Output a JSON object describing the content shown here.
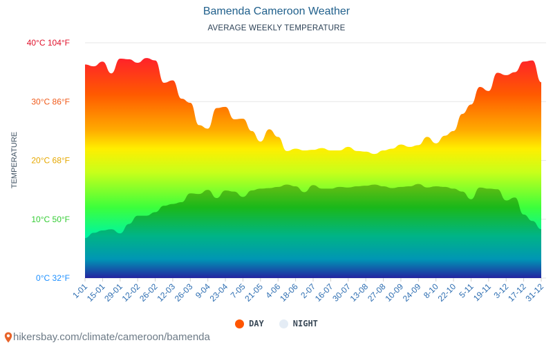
{
  "title": "Bamenda Cameroon Weather",
  "subtitle": "AVERAGE WEEKLY TEMPERATURE",
  "source": "hikersbay.com/climate/cameroon/bamenda",
  "legend": {
    "day_label": "DAY",
    "night_label": "NIGHT",
    "day_color": "#ff5500",
    "night_color": "#e4ecf5"
  },
  "chart_data": {
    "type": "area",
    "title": "Bamenda Cameroon Weather",
    "subtitle": "AVERAGE WEEKLY TEMPERATURE",
    "ylabel": "TEMPERATURE",
    "ylim": [
      0,
      40
    ],
    "y_ticks": [
      {
        "value": 0,
        "label": "0°C 32°F",
        "color": "#1e90ff"
      },
      {
        "value": 10,
        "label": "10°C 50°F",
        "color": "#33cc33"
      },
      {
        "value": 20,
        "label": "20°C 68°F",
        "color": "#e6a800"
      },
      {
        "value": 30,
        "label": "30°C 86°F",
        "color": "#f05a1a"
      },
      {
        "value": 40,
        "label": "40°C 104°F",
        "color": "#e0102a"
      }
    ],
    "x_tick_labels": [
      "1-01",
      "15-01",
      "29-01",
      "12-02",
      "26-02",
      "12-03",
      "26-03",
      "9-04",
      "23-04",
      "7-05",
      "21-05",
      "4-06",
      "18-06",
      "2-07",
      "16-07",
      "30-07",
      "13-08",
      "27-08",
      "10-09",
      "24-09",
      "8-10",
      "22-10",
      "5-11",
      "19-11",
      "3-12",
      "17-12",
      "31-12"
    ],
    "grid": "horizontal",
    "legend_position": "bottom-center",
    "series": [
      {
        "name": "DAY",
        "values": [
          36.3,
          36.0,
          36.8,
          34.8,
          37.3,
          37.2,
          36.6,
          37.4,
          37.0,
          33.2,
          33.6,
          30.5,
          29.8,
          26.0,
          25.4,
          28.9,
          29.1,
          27.0,
          27.1,
          25.0,
          23.2,
          25.3,
          24.0,
          21.6,
          22.0,
          21.7,
          21.8,
          22.1,
          21.7,
          21.7,
          22.3,
          21.6,
          21.5,
          21.1,
          21.7,
          22.0,
          22.7,
          22.3,
          22.6,
          24.0,
          22.9,
          24.2,
          25.0,
          27.9,
          29.5,
          32.5,
          31.8,
          34.9,
          34.5,
          35.0,
          36.8,
          37.0,
          33.3
        ]
      },
      {
        "name": "NIGHT",
        "values": [
          6.8,
          7.7,
          8.1,
          8.3,
          7.6,
          9.2,
          10.6,
          10.6,
          11.2,
          12.3,
          12.6,
          12.9,
          14.4,
          14.3,
          15.0,
          13.6,
          14.9,
          14.7,
          13.8,
          14.9,
          15.2,
          15.3,
          15.5,
          15.9,
          15.6,
          14.6,
          15.8,
          15.2,
          15.2,
          15.5,
          15.4,
          15.6,
          15.7,
          15.9,
          15.6,
          15.3,
          15.5,
          15.6,
          16.0,
          15.4,
          15.6,
          15.5,
          15.2,
          14.7,
          13.4,
          15.4,
          15.2,
          15.1,
          13.2,
          13.7,
          10.8,
          9.7,
          8.3
        ]
      }
    ]
  }
}
